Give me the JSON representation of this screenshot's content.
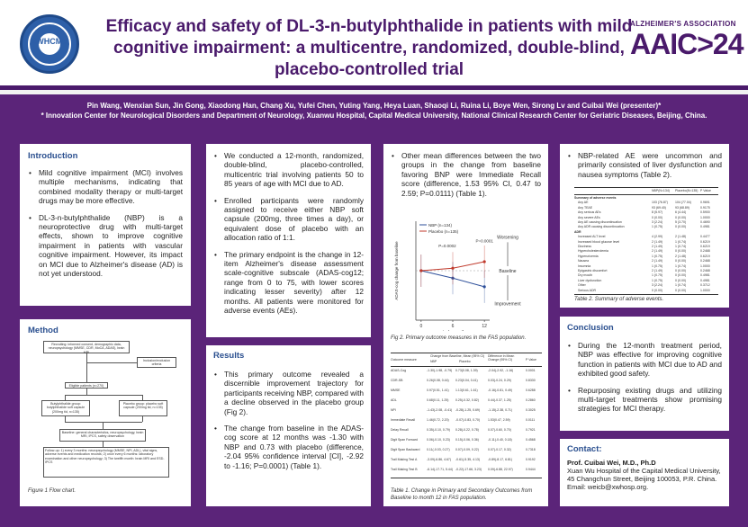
{
  "header": {
    "logo_text": "XWHCMU",
    "title": "Efficacy and safety of DL-3-n-butylphthalide in patients with mild cognitive impairment: a multicentre, randomized, double-blind, placebo-controlled trial",
    "aaic_top": "ALZHEIMER'S ASSOCIATION",
    "aaic_main": "AAIC>24"
  },
  "authors": {
    "names": "Pin Wang, Wenxian Sun, Jin Gong, Xiaodong Han, Chang Xu, Yufei Chen, Yuting Yang, Heya Luan, Shaoqi Li, Ruina Li, Boye Wen, Sirong Lv and Cuibai Wei (presenter)*",
    "affiliation": "* Innovation Center for Neurological Disorders and Department of Neurology, Xuanwu Hospital, Capital Medical University, National Clinical Research Center for Geriatric Diseases, Beijing, China."
  },
  "introduction": {
    "title": "Introduction",
    "bullets": [
      "Mild cognitive impairment (MCI) involves multiple mechanisms, indicating that combined modality therapy or multi-target drugs may be more effective.",
      "DL-3-n-butylphthalide (NBP) is a neuroprotective drug with multi-target effects, shown to improve cognitive impairment in patients with vascular cognitive impairment. However, its impact on MCI due to Alzheimer's disease (AD) is not yet understood."
    ]
  },
  "method": {
    "title": "Method",
    "caption": "Figure 1 Flow chart.",
    "flow": {
      "box1": "Recruiting: informed consent, demographic data, neuropsychology (MMSE, CDR, MoCA, ADAS), brain MRI",
      "excl": "Inclusion/exclusion criteria",
      "eligible": "Eligible patients (n=270)",
      "nbp": "Butylphthalide group: butylphthalide soft capsule (200mg tid, n=135)",
      "placebo": "Placebo group: placebo soft capsule (200mg tid, n=135)",
      "baseline": "Baseline: general characteristics, neuropsychology, brain MRI, IPCS, safety observation",
      "followup": "Follow-up: 1) every 3 months: neuropsychology (MMSE, NPI, ADL), vital signs, adverse events and medication records; 2) once every 6 months: laboratory examination and other neuropsychology; 3) The twelfth month: brain MRI and ESD-IPCS"
    }
  },
  "design": {
    "bullets": [
      "We conducted a 12-month, randomized, double-blind, placebo-controlled, multicentric trial involving patients 50 to 85 years of age with MCI due to AD.",
      "Enrolled participants were randomly assigned to receive either NBP soft capsule (200mg, three times a day), or equivalent dose of placebo with an allocation ratio of 1:1.",
      "The primary endpoint is the change in 12-item Alzheimer's disease assessment scale-cognitive subscale (ADAS-cog12; range from 0 to 75, with lower scores indicating lesser severity) after 12 months. All patients were monitored for adverse events (AEs)."
    ]
  },
  "results": {
    "title": "Results",
    "bullets": [
      "This primary outcome revealed a discernible improvement trajectory for participants receiving NBP, compared with a decline observed in the placebo group (Fig 2).",
      "The change from baseline in the ADAS-cog score at 12 months was -1.30 with NBP and 0.73 with placebo (difference, -2.04 95% confidence interval [CI], -2.92 to -1.16; P=0.0001) (Table 1)."
    ]
  },
  "secondary": {
    "bullets": [
      "Other mean differences between the two groups in the change from baseline favoring BNP were Immediate Recall score (difference, 1.53 95% CI, 0.47 to 2.59; P=0.0111) (Table 1)."
    ],
    "fig_caption": "Fig 2. Primary outcome measures in the FAS population.",
    "table_caption": "Table 1. Change in Primary and Secondary Outcomes from Baseline to month 12 in FAS population."
  },
  "chart_data": {
    "type": "line",
    "x": [
      0,
      6,
      12
    ],
    "xlabel": "study month",
    "ylabel": "ADAS-cog change from baseline",
    "series": [
      {
        "name": "NBP (n=134)",
        "color": "#2d4f9a",
        "values": [
          0,
          -0.6,
          -1.3
        ]
      },
      {
        "name": "Placebo (n=135)",
        "color": "#c0392b",
        "values": [
          0,
          0.2,
          0.73
        ]
      }
    ],
    "annotations": [
      {
        "label": "P=0.0002",
        "x": 6
      },
      {
        "label": "P=0.0001",
        "x": 12
      }
    ],
    "side_labels": [
      "Worsening",
      "Baseline",
      "Improvement"
    ],
    "ylim": [
      -4,
      4
    ]
  },
  "table1": {
    "header": [
      "Outcome measure",
      "Change from Baseline, Mean (95% CI)",
      "Difference in Mean Change (95% CI)",
      "P Value"
    ],
    "subheader": [
      "",
      "NBP",
      "Placebo",
      "",
      ""
    ],
    "rows": [
      [
        "ADAS-Cog",
        "-1.30(-1.98, -0.79)",
        "0.73(0.08, 1.39)",
        "-2.04(-2.92, -1.16)",
        "0.0001"
      ],
      [
        "CDR-SB",
        "0.26(0.08, 0.44)",
        "0.23(0.04, 0.41)",
        "0.03(-0.24, 0.29)",
        "0.8330"
      ],
      [
        "MMSE",
        "0.97(0.51, 1.41)",
        "1.13(0.61, 1.61)",
        "-0.16(-0.81, 0.49)",
        "0.6288"
      ],
      [
        "ADL",
        "0.68(0.11, 1.25)",
        "0.25(-0.32, 0.82)",
        "0.44(-0.37, 1.25)",
        "0.2860"
      ],
      [
        "NPI",
        "-1.43(-2.08, -0.41)",
        "-0.28(-1.25, 0.69)",
        "-1.15(-2.38, 0.71)",
        "0.3025"
      ],
      [
        "Immediate Recall",
        "1.46(0.72, 2.20)",
        "-0.07(-0.83, 0.70)",
        "1.53(0.47, 2.59)",
        "0.0111"
      ],
      [
        "Delay Recall",
        "0.35(-0.10, 0.79)",
        "0.28(-0.22, 0.78)",
        "0.07(-0.60, 0.70)",
        "0.7921"
      ],
      [
        "Digit Span Forward",
        "0.06(-0.10, 0.23)",
        "0.15(-0.06, 0.36)",
        "-0.11(-0.40, 0.18)",
        "0.4568"
      ],
      [
        "Digit Span Backward",
        "0.11(-0.03, 0.27)",
        "0.07(-0.09, 0.22)",
        "0.07(-0.17, 0.32)",
        "0.7318"
      ],
      [
        "Trail Making Test A",
        "-3.09(-6.86, 4.67)",
        "-0.61(-5.35, 4.13)",
        "-0.89(-8.17, 6.81)",
        "0.9192"
      ],
      [
        "Trail Making Test B",
        "-6.14(-17.71, 5.44)",
        "-0.22(-17.66, 3.23)",
        "0.09(-6.88, 22.97)",
        "0.9444"
      ]
    ]
  },
  "safety": {
    "bullets": [
      "NBP-related AE were uncommon and primarily consisted of liver dysfunction and nausea symptoms (Table 2)."
    ],
    "table_caption": "Table 2. Summary of adverse events."
  },
  "table2": {
    "header": [
      "",
      "NBP(N=134)",
      "Placebo(N=135)",
      "P Value"
    ],
    "rows": [
      [
        "Summary of adverse events",
        "",
        "",
        ""
      ],
      [
        "Any AE",
        "103 (76.87)",
        "104 (77.04)",
        "0.9691"
      ],
      [
        "Any TEAE",
        "93 (69.40)",
        "93 (68.89)",
        "0.9175"
      ],
      [
        "Any serious AEs",
        "8 (5.97)",
        "6 (4.44)",
        "0.5900"
      ],
      [
        "Any severe AEs",
        "0 (0.00)",
        "0 (0.00)",
        "1.0000"
      ],
      [
        "Any AE causing discontinuation",
        "3 (2.24)",
        "5 (3.70)",
        "0.4690"
      ],
      [
        "Any ADR causing discontinuation",
        "1 (0.75)",
        "0 (0.00)",
        "0.4981"
      ],
      [
        "ADR",
        "",
        "",
        ""
      ],
      [
        "Increased ALT level",
        "4 (2.99)",
        "2 (1.48)",
        "0.4477"
      ],
      [
        "Increased blood glucose level",
        "2 (1.49)",
        "1 (0.74)",
        "0.6219"
      ],
      [
        "Dizziness",
        "2 (1.49)",
        "1 (0.74)",
        "0.6219"
      ],
      [
        "Hypercholesterolemia",
        "2 (1.49)",
        "0 (0.00)",
        "0.2468"
      ],
      [
        "Hyperuricemia",
        "1 (0.75)",
        "2 (1.48)",
        "0.6219"
      ],
      [
        "Nausea",
        "2 (1.49)",
        "0 (0.00)",
        "0.2468"
      ],
      [
        "Insomnia",
        "1 (0.75)",
        "1 (0.74)",
        "1.0000"
      ],
      [
        "Epigastric discomfort",
        "2 (1.49)",
        "0 (0.00)",
        "0.2468"
      ],
      [
        "Dry mouth",
        "1 (0.75)",
        "0 (0.00)",
        "0.4981"
      ],
      [
        "Liver dysfunction",
        "1 (0.75)",
        "0 (0.00)",
        "0.4981"
      ],
      [
        "Other",
        "3 (2.24)",
        "1 (0.74)",
        "0.3712"
      ],
      [
        "Serious ADR",
        "0 (0.00)",
        "0 (0.00)",
        "1.0000"
      ]
    ]
  },
  "conclusion": {
    "title": "Conclusion",
    "bullets": [
      "During the 12-month treatment period, NBP was effective for improving cognitive function in patients with MCI due to AD and exhibited good safety.",
      "Repurposing existing drugs and utilizing multi-target treatments show promising strategies for MCI therapy."
    ]
  },
  "contact": {
    "title": "Contact:",
    "name": "Prof. Cuibai Wei, M.D., Ph.D",
    "lines": [
      "Xuan Wu Hospital of the Capital Medical University, 45 Changchun Street, Beijing 100053, P.R. China.",
      "Email: weicb@xwhosp.org."
    ]
  }
}
